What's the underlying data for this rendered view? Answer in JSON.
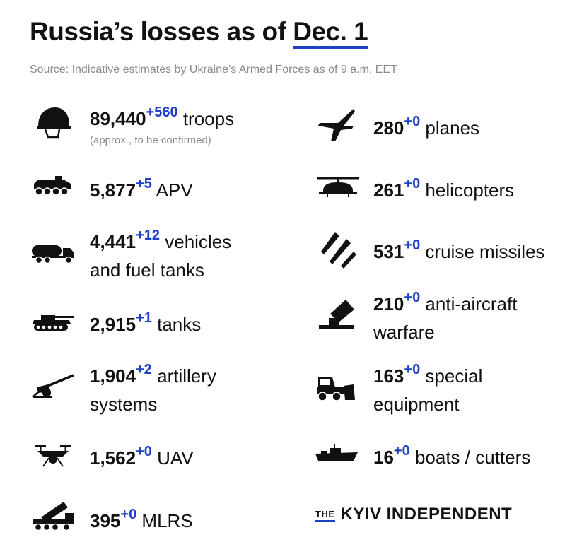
{
  "title": {
    "prefix": "Russia’s losses as of ",
    "date": "Dec. 1"
  },
  "source": "Source: Indicative estimates by Ukraine’s Armed Forces as of 9 a.m. EET",
  "accent_color": "#1f3fc6",
  "items": [
    {
      "icon": "helmet-icon",
      "number": "89,440",
      "delta": "+560",
      "label": " troops",
      "note": "(approx., to be confirmed)"
    },
    {
      "icon": "apv-icon",
      "number": "5,877",
      "delta": "+5",
      "label": " APV"
    },
    {
      "icon": "fuel-truck-icon",
      "number": "4,441",
      "delta": "+12",
      "label": " vehicles",
      "label2": "and fuel tanks"
    },
    {
      "icon": "tank-icon",
      "number": "2,915",
      "delta": "+1",
      "label": " tanks"
    },
    {
      "icon": "artillery-icon",
      "number": "1,904",
      "delta": "+2",
      "label": " artillery",
      "label2": "systems"
    },
    {
      "icon": "drone-icon",
      "number": "1,562",
      "delta": "+0",
      "label": " UAV"
    },
    {
      "icon": "mlrs-icon",
      "number": "395",
      "delta": "+0",
      "label": " MLRS"
    },
    {
      "icon": "plane-icon",
      "number": "280",
      "delta": "+0",
      "label": " planes"
    },
    {
      "icon": "helicopter-icon",
      "number": "261",
      "delta": "+0",
      "label": " helicopters"
    },
    {
      "icon": "missiles-icon",
      "number": "531",
      "delta": "+0",
      "label": " cruise missiles"
    },
    {
      "icon": "anti-aircraft-icon",
      "number": "210",
      "delta": "+0",
      "label": " anti-aircraft",
      "label2": "warfare"
    },
    {
      "icon": "bulldozer-icon",
      "number": "163",
      "delta": "+0",
      "label": " special",
      "label2": "equipment"
    },
    {
      "icon": "ship-icon",
      "number": "16",
      "delta": "+0",
      "label": " boats / cutters"
    }
  ],
  "logo": {
    "the": "THE",
    "name": "KYIV INDEPENDENT"
  }
}
